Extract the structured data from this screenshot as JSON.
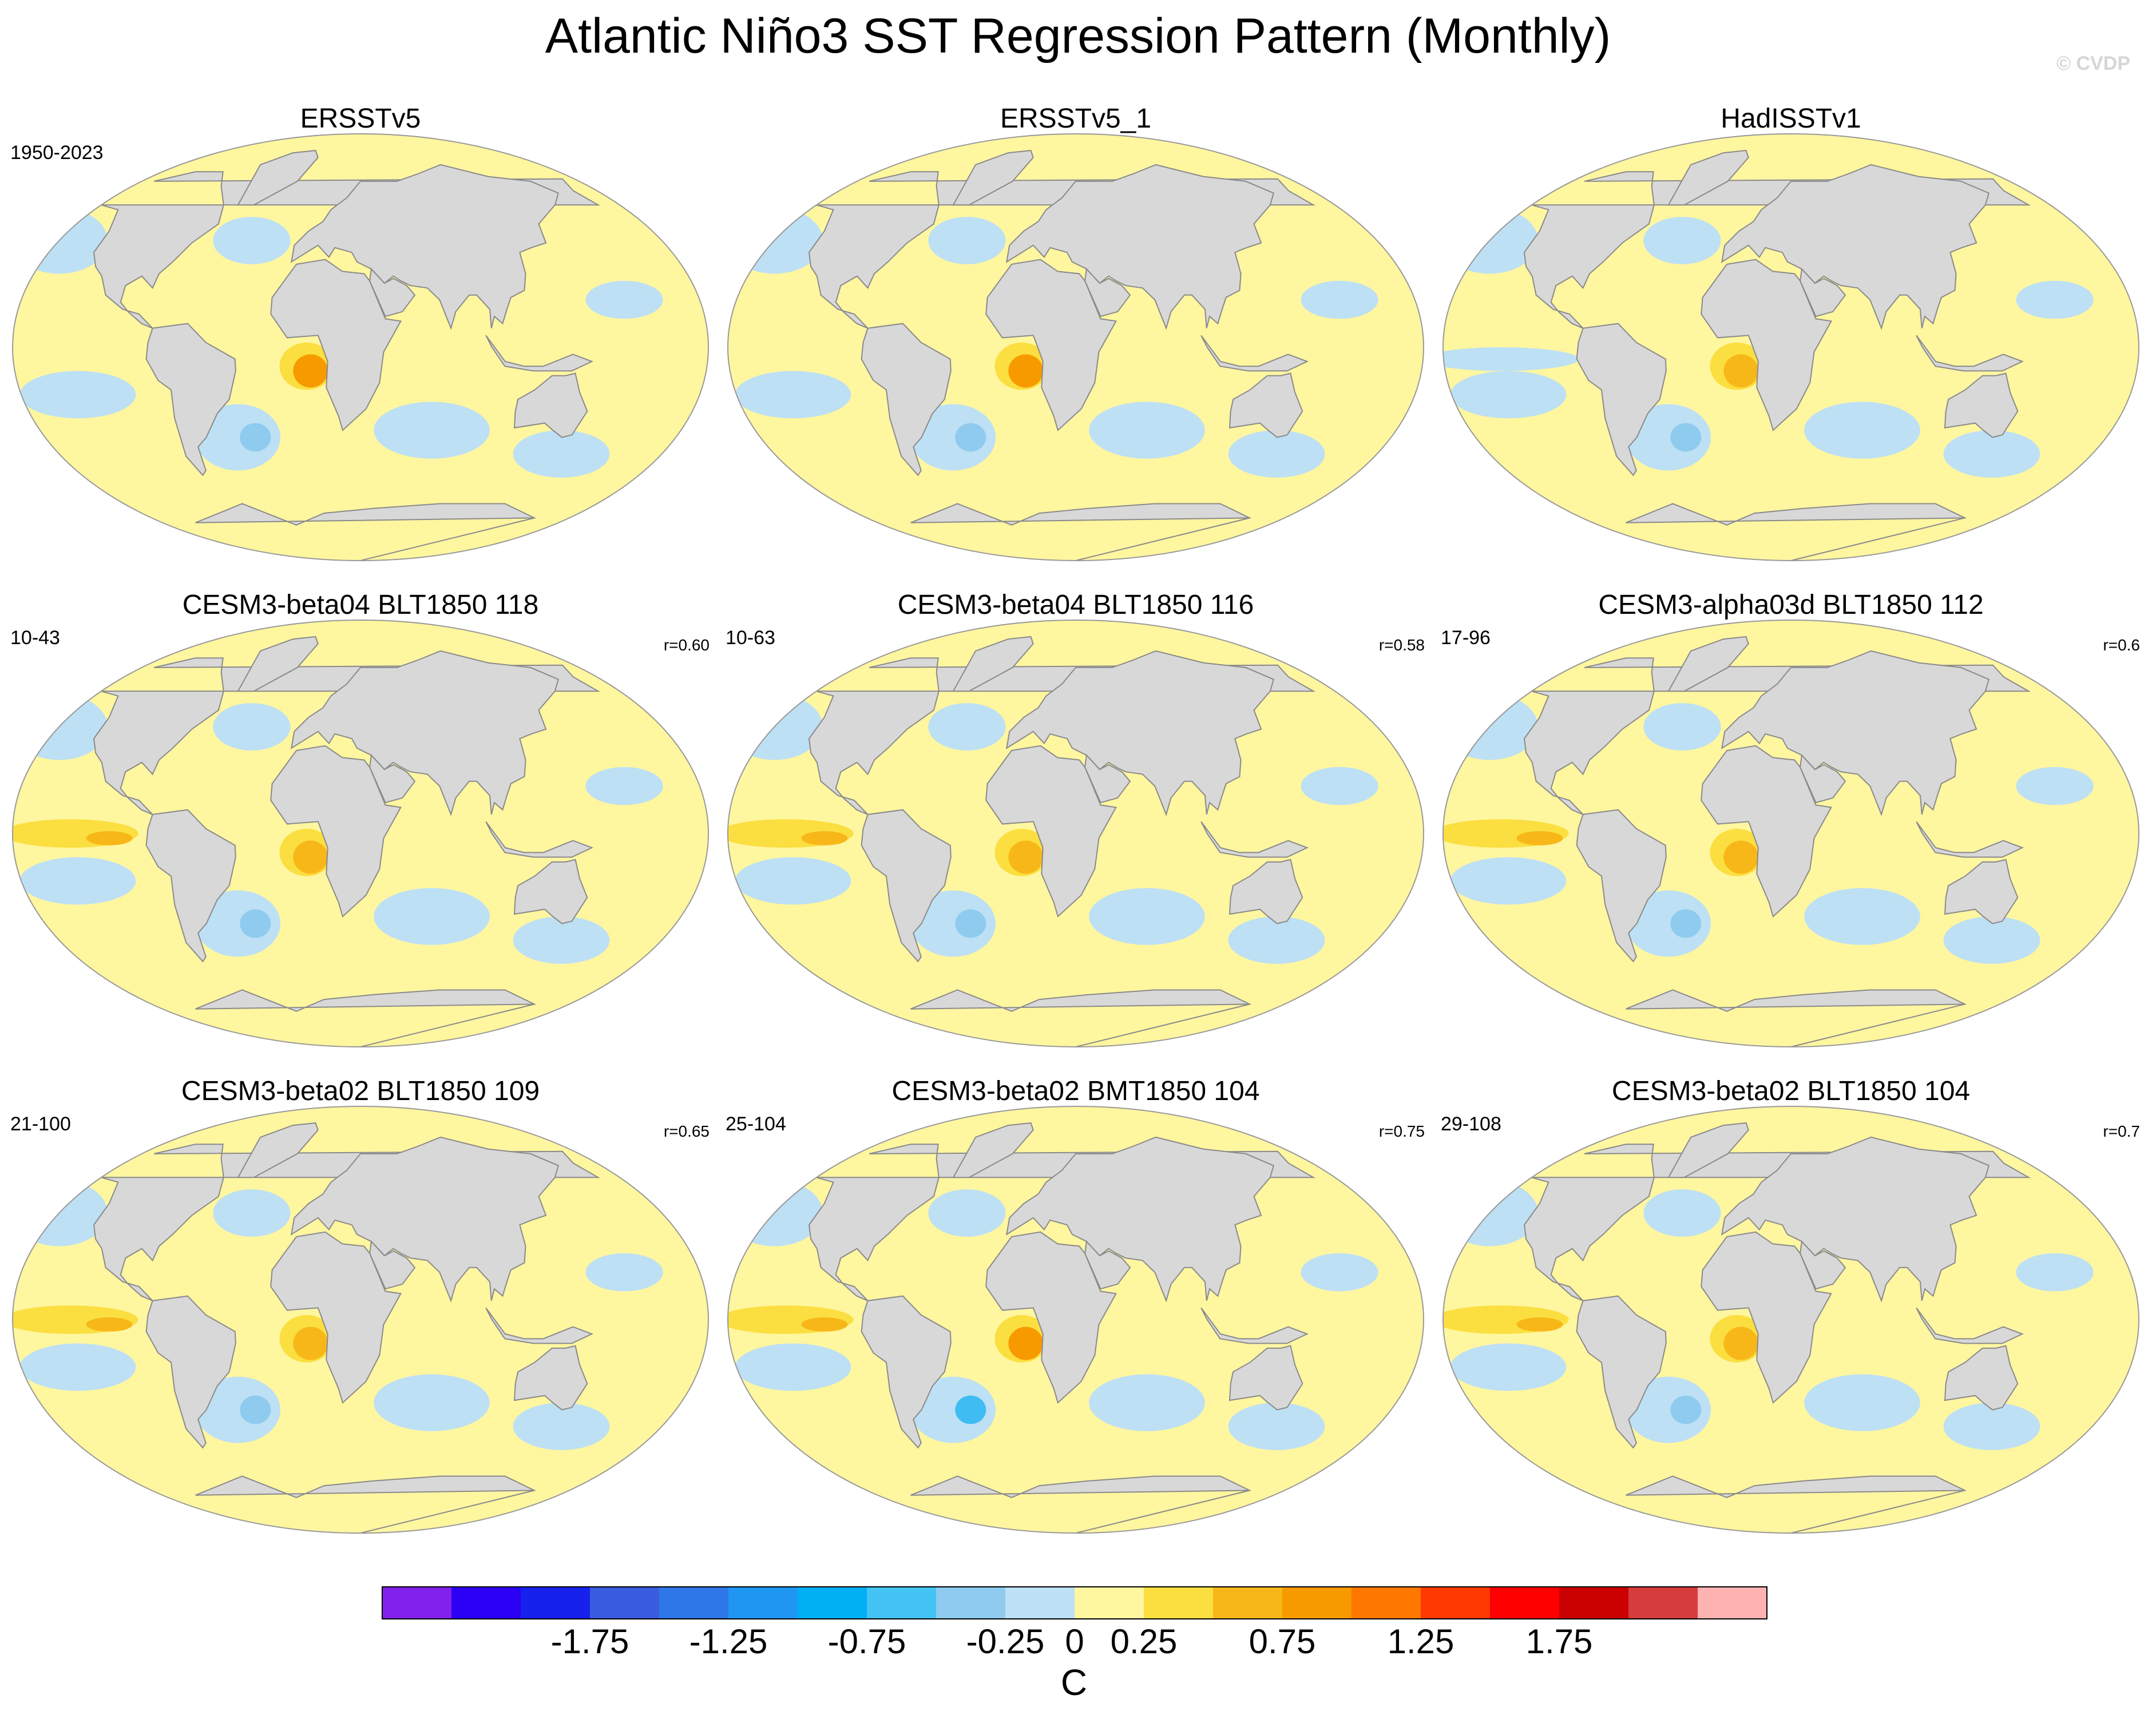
{
  "title": "Atlantic Niño3 SST Regression Pattern (Monthly)",
  "watermark": "© CVDP",
  "colors": {
    "land": "#d8d8d8",
    "coast": "#8a8a8a",
    "ocean_pos_weak": "#fff6a0",
    "ocean_neg_weak": "#bde0f4",
    "pos_mid": "#fbdf40",
    "pos_strong": "#f8b718",
    "pos_max": "#f79a00",
    "neg_mid": "#8fcbee",
    "neg_strong": "#3fbcf2"
  },
  "chart_data": {
    "type": "heatmap",
    "title": "Atlantic Niño3 SST Regression Pattern (Monthly)",
    "units": "C",
    "colorbar": {
      "levels": [
        -2.25,
        -2.0,
        -1.75,
        -1.5,
        -1.25,
        -1.0,
        -0.75,
        -0.5,
        -0.25,
        0,
        0.25,
        0.5,
        0.75,
        1.0,
        1.25,
        1.5,
        1.75,
        2.0,
        2.25
      ],
      "tick_labels": [
        "-1.75",
        "-1.25",
        "-0.75",
        "-0.25",
        "0",
        "0.25",
        "0.75",
        "1.25",
        "1.75"
      ],
      "tick_values": [
        -1.75,
        -1.25,
        -0.75,
        -0.25,
        0,
        0.25,
        0.75,
        1.25,
        1.75
      ],
      "colors": [
        "#8121eb",
        "#2d00f6",
        "#1621ed",
        "#3a5ce0",
        "#2e77e8",
        "#1f97f2",
        "#00b0f2",
        "#43c4f4",
        "#8fcbee",
        "#bde0f4",
        "#fff6a0",
        "#fbdf40",
        "#f8b718",
        "#f79a00",
        "#fe7800",
        "#ff3a00",
        "#ff0000",
        "#cb0000",
        "#d63c3c",
        "#ffb2b2"
      ]
    },
    "panels": [
      {
        "name": "ERSSTv5",
        "years": "1950-2023",
        "r": "",
        "cold_tongue": 0.75,
        "ns_anomaly": -0.25
      },
      {
        "name": "ERSSTv5_1",
        "years": "",
        "r": "",
        "cold_tongue": 0.75,
        "ns_anomaly": -0.25
      },
      {
        "name": "HadISSTv1",
        "years": "",
        "r": "",
        "cold_tongue": 0.5,
        "ns_anomaly": -0.25
      },
      {
        "name": "CESM3-beta04 BLT1850 118",
        "years": "10-43",
        "r": "r=0.60",
        "cold_tongue": 0.5,
        "ns_anomaly": -0.25
      },
      {
        "name": "CESM3-beta04 BLT1850 116",
        "years": "10-63",
        "r": "r=0.58",
        "cold_tongue": 0.5,
        "ns_anomaly": -0.25
      },
      {
        "name": "CESM3-alpha03d BLT1850 112",
        "years": "17-96",
        "r": "r=0.6",
        "cold_tongue": 0.5,
        "ns_anomaly": -0.25
      },
      {
        "name": "CESM3-beta02 BLT1850 109",
        "years": "21-100",
        "r": "r=0.65",
        "cold_tongue": 0.5,
        "ns_anomaly": -0.25
      },
      {
        "name": "CESM3-beta02 BMT1850 104",
        "years": "25-104",
        "r": "r=0.75",
        "cold_tongue": 0.75,
        "ns_anomaly": -0.5
      },
      {
        "name": "CESM3-beta02 BLT1850 104",
        "years": "29-108",
        "r": "r=0.7",
        "cold_tongue": 0.5,
        "ns_anomaly": -0.25
      }
    ]
  }
}
